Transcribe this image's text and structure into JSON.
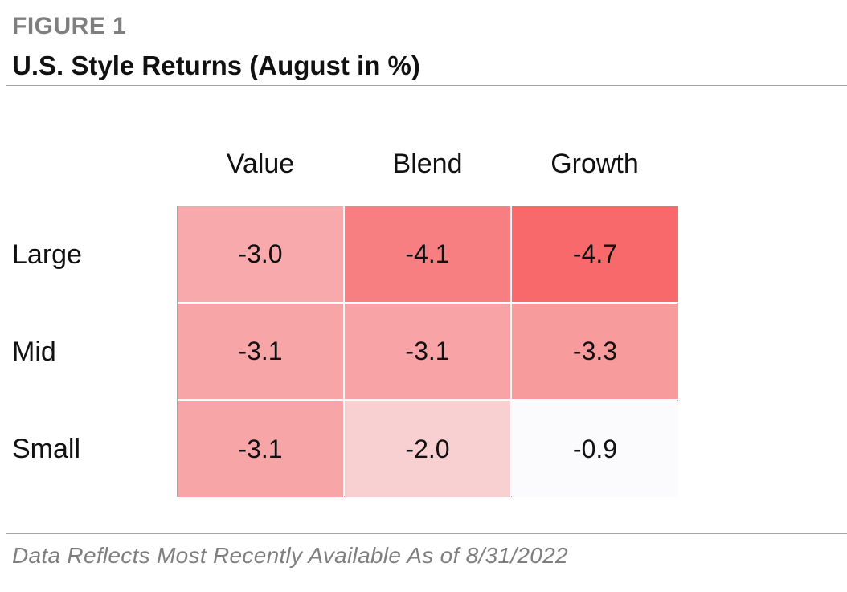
{
  "figure_label": "FIGURE 1",
  "title": "U.S. Style Returns (August in %)",
  "footnote": "Data Reflects Most Recently Available As of 8/31/2022",
  "chart_data": {
    "type": "heatmap",
    "title": "U.S. Style Returns (August in %)",
    "columns": [
      "Value",
      "Blend",
      "Growth"
    ],
    "rows": [
      "Large",
      "Mid",
      "Small"
    ],
    "values": [
      [
        "-3.0",
        "-4.1",
        "-4.7"
      ],
      [
        "-3.1",
        "-3.1",
        "-3.3"
      ],
      [
        "-3.1",
        "-2.0",
        "-0.9"
      ]
    ],
    "colors": [
      [
        "#f8a9ab",
        "#f77f82",
        "#f8696b"
      ],
      [
        "#f8a5a7",
        "#f8a4a6",
        "#f89b9d"
      ],
      [
        "#f8a5a7",
        "#f9d0d2",
        "#fbfbfd"
      ]
    ]
  }
}
